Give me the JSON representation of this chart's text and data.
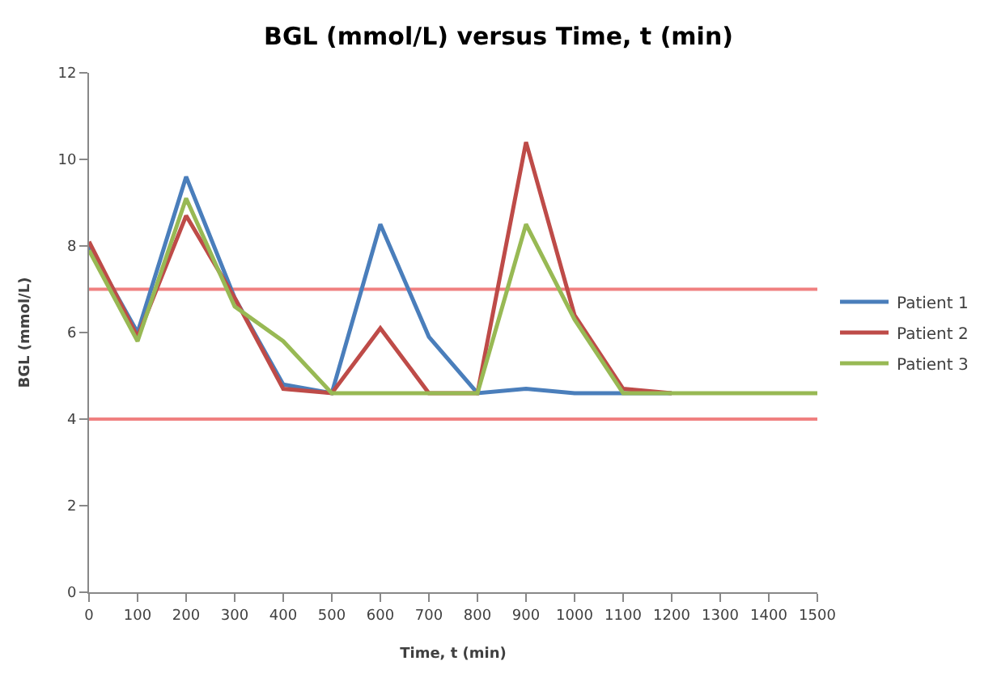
{
  "chart_data": {
    "type": "line",
    "title": "BGL (mmol/L) versus Time, t (min)",
    "xlabel": "Time, t (min)",
    "ylabel": "BGL (mmol/L)",
    "x": [
      0,
      100,
      200,
      300,
      400,
      500,
      600,
      700,
      800,
      900,
      1000,
      1100,
      1200,
      1300,
      1400,
      1500
    ],
    "series": [
      {
        "name": "Patient 1",
        "color": "#4a7ebb",
        "values": [
          8.0,
          6.0,
          9.6,
          6.8,
          4.8,
          4.6,
          8.5,
          5.9,
          4.6,
          4.7,
          4.6,
          4.6,
          4.6,
          null,
          null,
          null
        ]
      },
      {
        "name": "Patient 2",
        "color": "#be4b48",
        "values": [
          8.1,
          5.9,
          8.7,
          6.8,
          4.7,
          4.6,
          6.1,
          4.6,
          4.6,
          10.4,
          6.4,
          4.7,
          4.6,
          null,
          null,
          null
        ]
      },
      {
        "name": "Patient 3",
        "color": "#98b954",
        "values": [
          7.9,
          5.8,
          9.1,
          6.6,
          5.8,
          4.6,
          4.6,
          4.6,
          4.6,
          8.5,
          6.3,
          4.6,
          4.6,
          4.6,
          4.6,
          4.6
        ]
      }
    ],
    "xlim": [
      0,
      1500
    ],
    "xticks": [
      0,
      100,
      200,
      300,
      400,
      500,
      600,
      700,
      800,
      900,
      1000,
      1100,
      1200,
      1300,
      1400,
      1500
    ],
    "ylim": [
      0,
      12
    ],
    "yticks": [
      0,
      2,
      4,
      6,
      8,
      10,
      12
    ],
    "ref_lines": [
      {
        "axis": "y",
        "value": 7,
        "color": "#f08080"
      },
      {
        "axis": "y",
        "value": 4,
        "color": "#f08080"
      }
    ],
    "grid": false,
    "legend": "right",
    "marker": "none",
    "line_style": "solid"
  }
}
